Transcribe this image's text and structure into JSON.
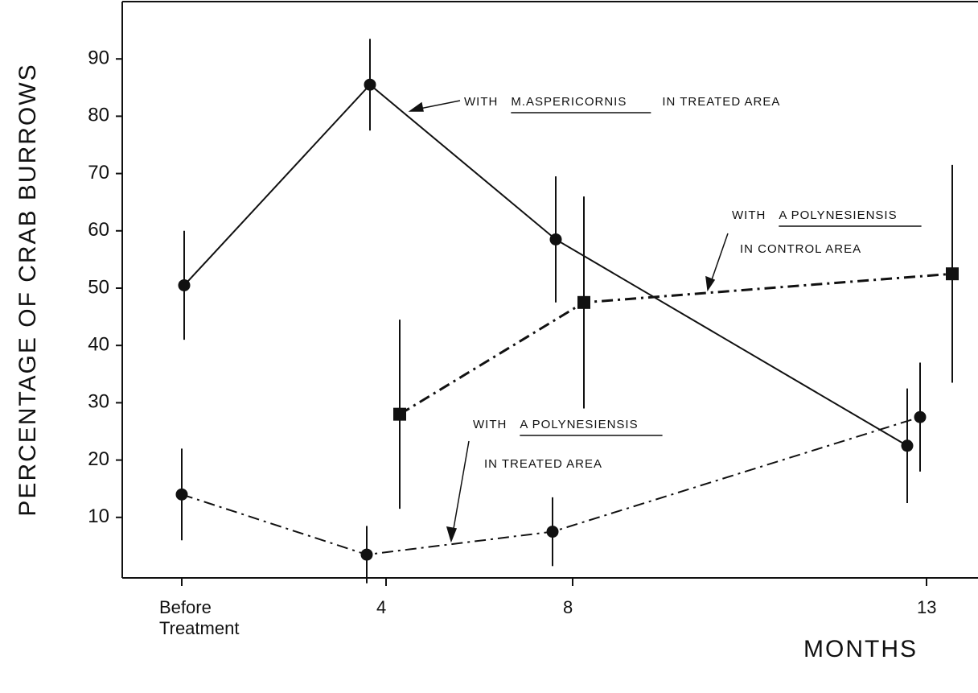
{
  "chart_data": {
    "type": "line",
    "y_label": "PERCENTAGE OF CRAB BURROWS",
    "x_label": "MONTHS",
    "categories": [
      "Before Treatment",
      "4",
      "8",
      "13"
    ],
    "ylim": [
      0,
      100
    ],
    "yticks": [
      10,
      20,
      30,
      40,
      50,
      60,
      70,
      80,
      90
    ],
    "series": [
      {
        "color": "#111111",
        "dash": "solid",
        "marker": "circle",
        "values": [
          50.5,
          85.5,
          58.5,
          22.5
        ],
        "errors": [
          9.5,
          8,
          11,
          10
        ]
      },
      {
        "color": "#111111",
        "dash": "dashdot-bold",
        "marker": "square",
        "values": [
          null,
          28,
          47.5,
          52.5
        ],
        "errors": [
          null,
          16.5,
          18.5,
          19
        ]
      },
      {
        "color": "#111111",
        "dash": "dashdot",
        "marker": "circle",
        "values": [
          14,
          3.5,
          7.5,
          27.5
        ],
        "errors": [
          8,
          5,
          6,
          9.5
        ]
      }
    ],
    "annotations": [
      {
        "lines": [
          [
            "WITH",
            "M.ASPERICORNIS",
            "IN TREATED AREA"
          ]
        ]
      },
      {
        "lines": [
          [
            "WITH",
            "A POLYNESIENSIS"
          ],
          [
            "IN CONTROL AREA"
          ]
        ]
      },
      {
        "lines": [
          [
            "WITH",
            "A POLYNESIENSIS"
          ],
          [
            "IN TREATED AREA"
          ]
        ]
      }
    ]
  }
}
